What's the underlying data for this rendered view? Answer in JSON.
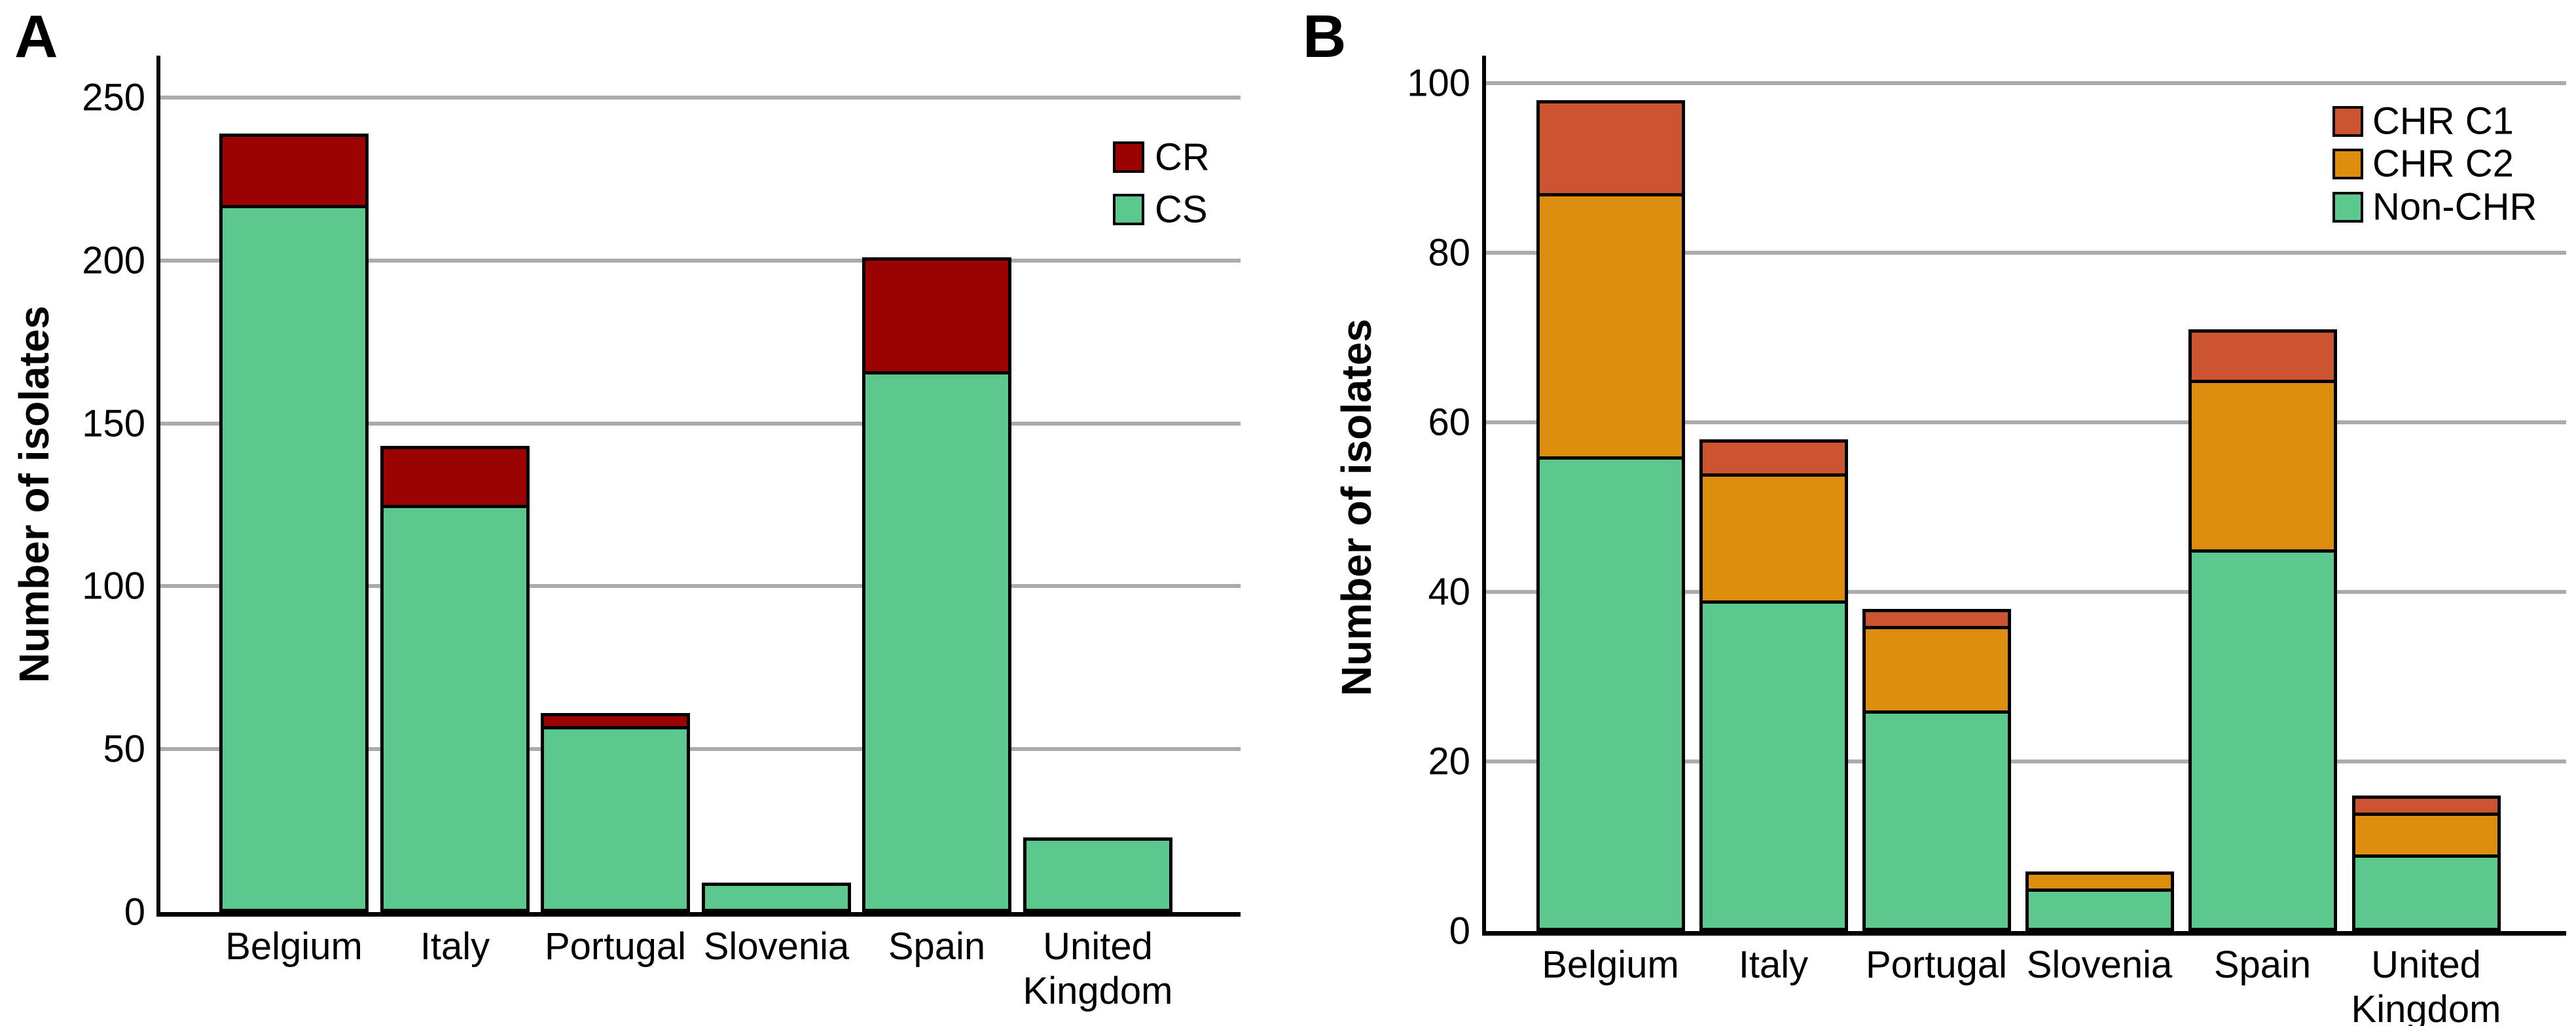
{
  "chart_data": [
    {
      "type": "bar",
      "stacked": true,
      "panel_label": "A",
      "title": "",
      "xlabel": "",
      "ylabel": "Number of isolates",
      "categories": [
        "Belgium",
        "Italy",
        "Portugal",
        "Slovenia",
        "Spain",
        "United\nKingdom"
      ],
      "series": [
        {
          "name": "CS",
          "color": "#5dc88e",
          "values": [
            217,
            125,
            57,
            9,
            166,
            23
          ]
        },
        {
          "name": "CR",
          "color": "#9b0303",
          "values": [
            22,
            18,
            4,
            0,
            35,
            0
          ]
        }
      ],
      "totals": [
        239,
        143,
        61,
        9,
        201,
        23
      ],
      "ylim": [
        0,
        250
      ],
      "yticks": [
        0,
        50,
        100,
        150,
        200,
        250
      ],
      "grid": true,
      "legend_position": "upper right",
      "legend": [
        "CR",
        "CS"
      ]
    },
    {
      "type": "bar",
      "stacked": true,
      "panel_label": "B",
      "title": "",
      "xlabel": "",
      "ylabel": "Number of isolates",
      "categories": [
        "Belgium",
        "Italy",
        "Portugal",
        "Slovenia",
        "Spain",
        "United\nKingdom"
      ],
      "series": [
        {
          "name": "Non-CHR",
          "color": "#5dc88e",
          "values": [
            56,
            39,
            26,
            5,
            45,
            9
          ]
        },
        {
          "name": "CHR C2",
          "color": "#de8e0e",
          "values": [
            31,
            15,
            10,
            2,
            20,
            5
          ]
        },
        {
          "name": "CHR C1",
          "color": "#cc5431",
          "values": [
            11,
            4,
            2,
            0,
            6,
            2
          ]
        }
      ],
      "totals": [
        98,
        58,
        38,
        7,
        71,
        16
      ],
      "ylim": [
        0,
        100
      ],
      "yticks": [
        0,
        20,
        40,
        60,
        80,
        100
      ],
      "grid": true,
      "legend_position": "upper right",
      "legend": [
        "CHR C1",
        "CHR C2",
        "Non-CHR"
      ]
    }
  ]
}
